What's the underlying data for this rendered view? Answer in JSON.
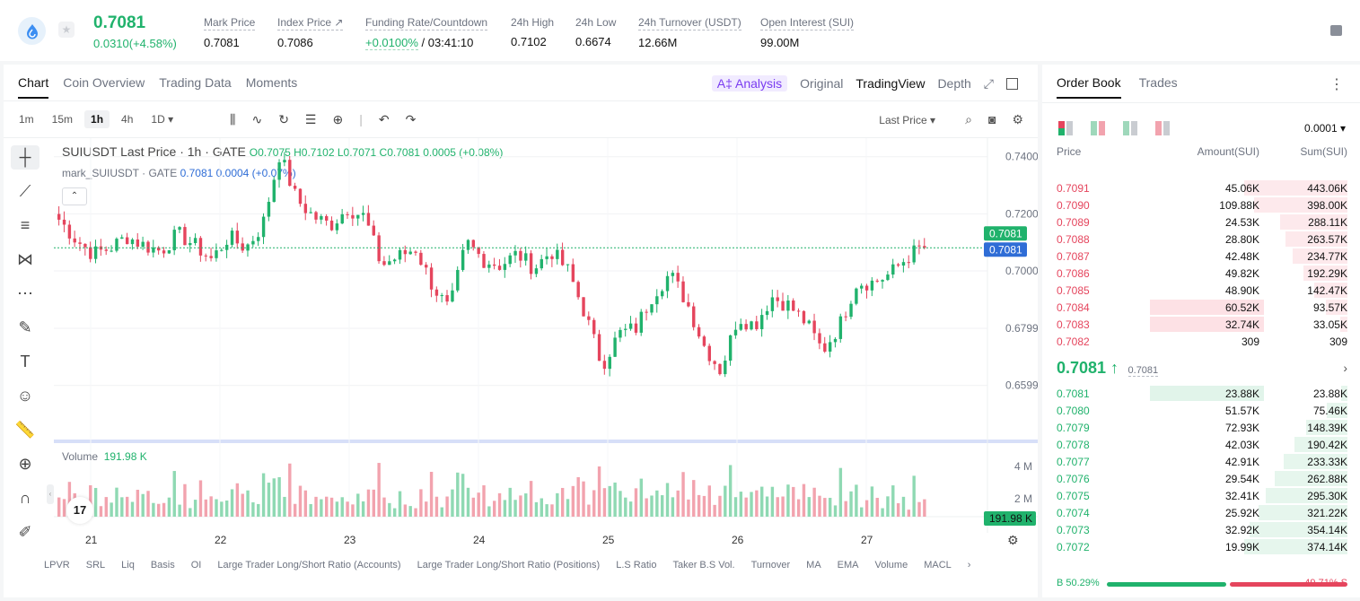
{
  "header": {
    "last_price": "0.7081",
    "change": "0.0310(+4.58%)",
    "stats": [
      {
        "label": "Mark Price",
        "value": "0.7081"
      },
      {
        "label": "Index Price ↗",
        "value": "0.7086"
      },
      {
        "label": "Funding Rate/Countdown",
        "value_green": "+0.0100%",
        "value": " / 03:41:10"
      },
      {
        "label": "24h High",
        "value": "0.7102"
      },
      {
        "label": "24h Low",
        "value": "0.6674"
      },
      {
        "label": "24h Turnover (USDT)",
        "value": "12.66M"
      },
      {
        "label": "Open Interest (SUI)",
        "value": "99.00M"
      }
    ]
  },
  "chart_tabs": [
    "Chart",
    "Coin Overview",
    "Trading Data",
    "Moments"
  ],
  "view_tabs": {
    "ai": "A‡ Analysis",
    "original": "Original",
    "tradingview": "TradingView",
    "depth": "Depth"
  },
  "intervals": [
    "1m",
    "15m",
    "1h",
    "4h",
    "1D ▾"
  ],
  "price_type": "Last Price ▾",
  "legend": {
    "symbol": "SUIUSDT Last Price · 1h · GATE",
    "ohlc": "O0.7075 H0.7102 L0.7071 C0.7081 0.0005 (+0.08%)",
    "mark": "mark_SUIUSDT · GATE",
    "mark_vals": "0.7081 0.0004 (+0.07%)"
  },
  "volume": {
    "label": "Volume",
    "value": "191.98 K"
  },
  "indicators": [
    "LPVR",
    "SRL",
    "Liq",
    "Basis",
    "OI",
    "Large Trader Long/Short Ratio (Accounts)",
    "Large Trader Long/Short Ratio (Positions)",
    "L.S Ratio",
    "Taker B.S Vol.",
    "Turnover",
    "MA",
    "EMA",
    "Volume",
    "MACL"
  ],
  "chart_data": {
    "type": "candlestick",
    "x_labels": [
      "21",
      "22",
      "23",
      "24",
      "25",
      "26",
      "27"
    ],
    "price_axis": [
      "0.7400",
      "0.7200",
      "0.7000",
      "0.6799",
      "0.6599"
    ],
    "ylim": [
      0.646,
      0.7465
    ],
    "volume_axis": [
      "4 M",
      "2 M"
    ],
    "current_price": 0.7081,
    "price_labels": [
      "0.7081",
      "0.7081"
    ],
    "volume_marker": "191.98 K",
    "close_path": [
      0.718,
      0.711,
      0.706,
      0.708,
      0.712,
      0.709,
      0.707,
      0.713,
      0.709,
      0.704,
      0.712,
      0.708,
      0.716,
      0.741,
      0.725,
      0.719,
      0.716,
      0.722,
      0.719,
      0.702,
      0.705,
      0.708,
      0.695,
      0.686,
      0.71,
      0.704,
      0.702,
      0.706,
      0.701,
      0.707,
      0.7,
      0.685,
      0.667,
      0.678,
      0.68,
      0.692,
      0.699,
      0.689,
      0.674,
      0.665,
      0.684,
      0.681,
      0.691,
      0.688,
      0.682,
      0.672,
      0.681,
      0.696,
      0.696,
      0.699,
      0.705,
      0.709
    ]
  },
  "orderbook": {
    "tabs": [
      "Order Book",
      "Trades"
    ],
    "precision": "0.0001 ▾",
    "headers": {
      "price": "Price",
      "amount": "Amount(SUI)",
      "sum": "Sum(SUI)"
    },
    "asks": [
      {
        "price": "0.7091",
        "amount": "45.06K",
        "sum": "443.06K",
        "depth": 1.0
      },
      {
        "price": "0.7090",
        "amount": "109.88K",
        "sum": "398.00K",
        "depth": 0.9
      },
      {
        "price": "0.7089",
        "amount": "24.53K",
        "sum": "288.11K",
        "depth": 0.65
      },
      {
        "price": "0.7088",
        "amount": "28.80K",
        "sum": "263.57K",
        "depth": 0.6
      },
      {
        "price": "0.7087",
        "amount": "42.48K",
        "sum": "234.77K",
        "depth": 0.53
      },
      {
        "price": "0.7086",
        "amount": "49.82K",
        "sum": "192.29K",
        "depth": 0.43
      },
      {
        "price": "0.7085",
        "amount": "48.90K",
        "sum": "142.47K",
        "depth": 0.32
      },
      {
        "price": "0.7084",
        "amount": "60.52K",
        "sum": "93.57K",
        "depth": 0.21,
        "hl": true
      },
      {
        "price": "0.7083",
        "amount": "32.74K",
        "sum": "33.05K",
        "depth": 0.07,
        "hl": true
      },
      {
        "price": "0.7082",
        "amount": "309",
        "sum": "309",
        "depth": 0.0
      }
    ],
    "mid": {
      "price": "0.7081 ↑",
      "mark": "0.7081",
      "chevron": "›"
    },
    "bids": [
      {
        "price": "0.7081",
        "amount": "23.88K",
        "sum": "23.88K",
        "depth": 0.06,
        "hl": true
      },
      {
        "price": "0.7080",
        "amount": "51.57K",
        "sum": "75.46K",
        "depth": 0.2
      },
      {
        "price": "0.7079",
        "amount": "72.93K",
        "sum": "148.39K",
        "depth": 0.4
      },
      {
        "price": "0.7078",
        "amount": "42.03K",
        "sum": "190.42K",
        "depth": 0.51
      },
      {
        "price": "0.7077",
        "amount": "42.91K",
        "sum": "233.33K",
        "depth": 0.62
      },
      {
        "price": "0.7076",
        "amount": "29.54K",
        "sum": "262.88K",
        "depth": 0.7
      },
      {
        "price": "0.7075",
        "amount": "32.41K",
        "sum": "295.30K",
        "depth": 0.79
      },
      {
        "price": "0.7074",
        "amount": "25.92K",
        "sum": "321.22K",
        "depth": 0.86
      },
      {
        "price": "0.7073",
        "amount": "32.92K",
        "sum": "354.14K",
        "depth": 0.95
      },
      {
        "price": "0.7072",
        "amount": "19.99K",
        "sum": "374.14K",
        "depth": 1.0
      }
    ],
    "buy_ratio": "B 50.29%",
    "sell_ratio": "49.71% S",
    "buy_fraction": 0.5029
  },
  "colors": {
    "up": "#20b26c",
    "down": "#e5455d",
    "up_vol": "#8fd9b3",
    "down_vol": "#f2a3ae"
  }
}
